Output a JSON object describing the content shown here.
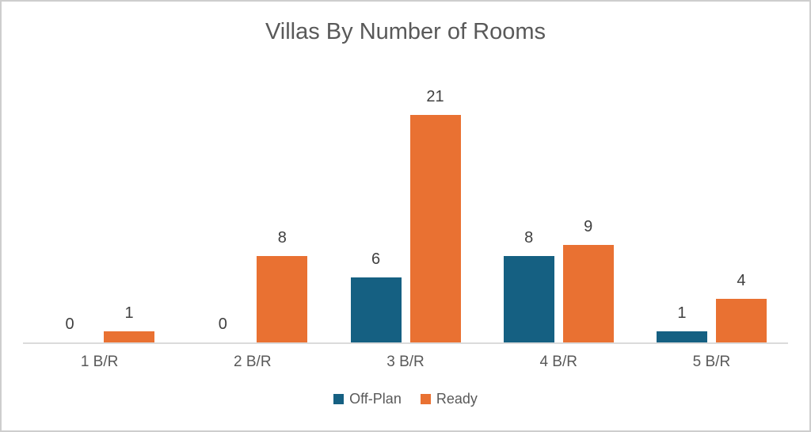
{
  "chart_data": {
    "type": "bar",
    "title": "Villas By Number of Rooms",
    "categories": [
      "1 B/R",
      "2 B/R",
      "3 B/R",
      "4 B/R",
      "5 B/R"
    ],
    "series": [
      {
        "name": "Off-Plan",
        "color": "#156082",
        "values": [
          0,
          0,
          6,
          8,
          1
        ]
      },
      {
        "name": "Ready",
        "color": "#E97132",
        "values": [
          1,
          8,
          21,
          9,
          4
        ]
      }
    ],
    "ylim": [
      0,
      21
    ],
    "data_labels": true,
    "legend_position": "bottom",
    "grid": false,
    "xlabel": "",
    "ylabel": ""
  },
  "style": {
    "title_color": "#595959",
    "value_label_color": "#404040",
    "category_label_color": "#595959",
    "baseline_color": "#DBDBDB",
    "frame_border_color": "#CECECE",
    "background_color": "#FFFFFF"
  }
}
